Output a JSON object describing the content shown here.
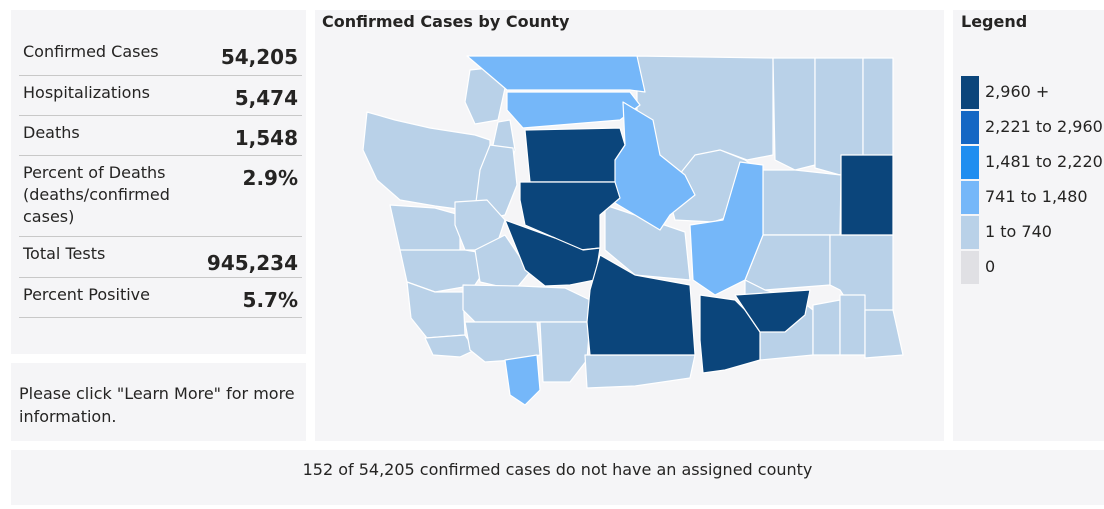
{
  "stats": [
    {
      "label": "Confirmed Cases",
      "value": "54,205"
    },
    {
      "label": "Hospitalizations",
      "value": "5,474"
    },
    {
      "label": "Deaths",
      "value": "1,548"
    },
    {
      "label": "Percent of Deaths (deaths/confirmed cases)",
      "value": "2.9%"
    },
    {
      "label": "Total Tests",
      "value": "945,234"
    },
    {
      "label": "Percent Positive",
      "value": "5.7%"
    }
  ],
  "info_text": "Please click \"Learn More\" for more information.",
  "map": {
    "title": "Confirmed Cases by County"
  },
  "legend": {
    "title": "Legend",
    "items": [
      {
        "label": "2,960 +",
        "color": "#0b457b"
      },
      {
        "label": "2,221 to 2,960",
        "color": "#1467c4"
      },
      {
        "label": "1,481 to 2,220",
        "color": "#1f8ef0"
      },
      {
        "label": "741 to 1,480",
        "color": "#75b7f9"
      },
      {
        "label": "1 to 740",
        "color": "#b9d1e8"
      },
      {
        "label": "0",
        "color": "#e0e0e4"
      }
    ]
  },
  "footer_text": "152 of 54,205 confirmed cases do not have an assigned county"
}
